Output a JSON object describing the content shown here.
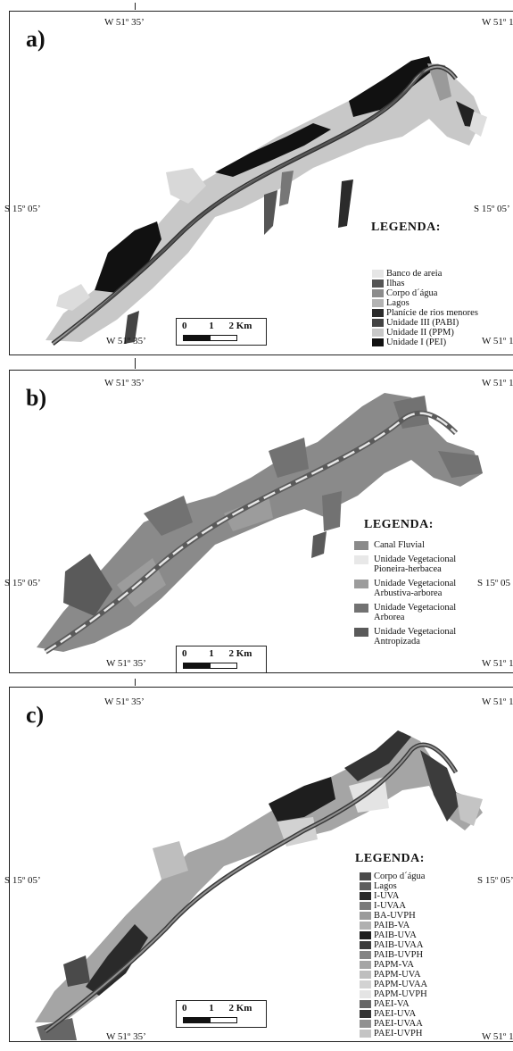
{
  "panels": {
    "a": {
      "label": "a)",
      "coord_top_center": "W 51º 35’",
      "coord_top_right": "W 51º 1",
      "coord_left": "S 15º 05’",
      "coord_right": "S 15º 05’",
      "coord_bottom_center": "W 51º 35’",
      "coord_bottom_right": "W 51º 1",
      "legend_title": "LEGENDA:",
      "legend": [
        {
          "label": "Banco de areia",
          "color": "#e6e6e6"
        },
        {
          "label": "Ilhas",
          "color": "#555555"
        },
        {
          "label": "Corpo d´água",
          "color": "#8c8c8c"
        },
        {
          "label": "Lagos",
          "color": "#b3b3b3"
        },
        {
          "label": "Planície de rios menores",
          "color": "#2b2b2b"
        },
        {
          "label": "Unidade III (PABI)",
          "color": "#444444"
        },
        {
          "label": "Unidade II (PPM)",
          "color": "#c8c8c8"
        },
        {
          "label": "Unidade I (PEI)",
          "color": "#111111"
        }
      ]
    },
    "b": {
      "label": "b)",
      "coord_top_center": "W 51º 35’",
      "coord_top_right": "W 51º 1",
      "coord_left": "S 15º 05’",
      "coord_right": "S 15º 05",
      "coord_bottom_center": "W 51º 35’",
      "coord_bottom_right": "W 51º 1",
      "legend_title": "LEGENDA:",
      "legend": [
        {
          "label": "Canal Fluvial",
          "color": "#8a8a8a"
        },
        {
          "label": "Unidade Vegetacional Pioneira-herbacea",
          "color": "#e8e8e8"
        },
        {
          "label": "Unidade Vegetacional Arbustiva-arborea",
          "color": "#9c9c9c"
        },
        {
          "label": "Unidade Vegetacional Arborea",
          "color": "#727272"
        },
        {
          "label": "Unidade Vegetacional Antropizada",
          "color": "#5a5a5a"
        }
      ]
    },
    "c": {
      "label": "c)",
      "coord_top_center": "W 51º 35’",
      "coord_top_right": "W 51º 1",
      "coord_left": "S 15º 05’",
      "coord_right": "S 15º 05’",
      "coord_bottom_center": "W 51º 35’",
      "coord_bottom_right": "W 51º 1",
      "legend_title": "LEGENDA:",
      "legend": [
        {
          "label": "Corpo d´água",
          "color": "#4a4a4a"
        },
        {
          "label": "Lagos",
          "color": "#5e5e5e"
        },
        {
          "label": "I-UVA",
          "color": "#2a2a2a"
        },
        {
          "label": "I-UVAA",
          "color": "#7a7a7a"
        },
        {
          "label": "BA-UVPH",
          "color": "#9a9a9a"
        },
        {
          "label": "PAIB-VA",
          "color": "#b0b0b0"
        },
        {
          "label": "PAIB-UVA",
          "color": "#1e1e1e"
        },
        {
          "label": "PAIB-UVAA",
          "color": "#3c3c3c"
        },
        {
          "label": "PAIB-UVPH",
          "color": "#858585"
        },
        {
          "label": "PAPM-VA",
          "color": "#a5a5a5"
        },
        {
          "label": "PAPM-UVA",
          "color": "#bebebe"
        },
        {
          "label": "PAPM-UVAA",
          "color": "#d2d2d2"
        },
        {
          "label": "PAPM-UVPH",
          "color": "#e4e4e4"
        },
        {
          "label": "PAEI-VA",
          "color": "#666666"
        },
        {
          "label": "PAEI-UVA",
          "color": "#333333"
        },
        {
          "label": "PAEI-UVAA",
          "color": "#909090"
        },
        {
          "label": "PAEI-UVPH",
          "color": "#c4c4c4"
        }
      ]
    }
  },
  "scalebar": {
    "n0": "0",
    "n1": "1",
    "n2": "2 Km"
  }
}
